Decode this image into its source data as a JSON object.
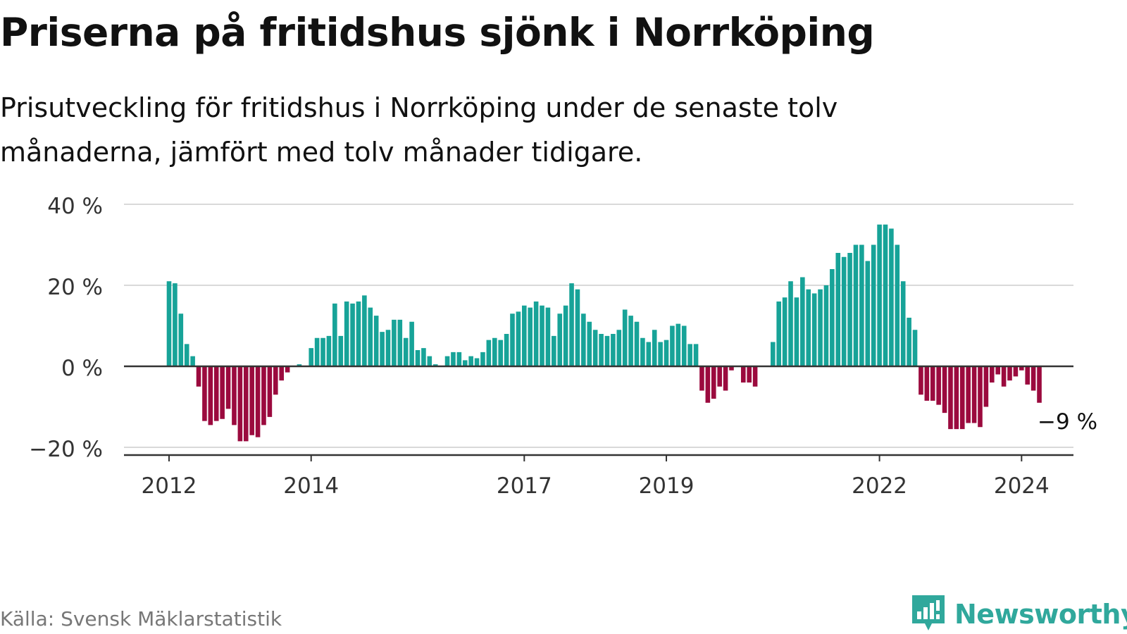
{
  "title": "Priserna på fritidshus sjönk i Norrköping",
  "subtitle": "Prisutveckling för fritidshus i Norrköping under de senaste tolv månaderna, jämfört med tolv månader tidigare.",
  "source": "Källa: Svensk Mäklarstatistik",
  "brand": {
    "name": "Newsworthy",
    "logo_icon": "newsworthy-chart-icon",
    "color": "#30a89c"
  },
  "colors": {
    "positive": "#17a398",
    "negative": "#9b0a3e",
    "grid": "#d9d9d9",
    "zero_line": "#333333",
    "text": "#111111",
    "muted": "#777777"
  },
  "chart_data": {
    "type": "bar",
    "title": "Priserna på fritidshus sjönk i Norrköping",
    "xlabel": "",
    "ylabel": "",
    "unit": "%",
    "ylim": [
      -22,
      40
    ],
    "yticks": [
      -20,
      0,
      20,
      40
    ],
    "ytick_labels": [
      "−20 %",
      "0 %",
      "20 %",
      "40 %"
    ],
    "x_start": "2012-01",
    "xticks": [
      "2012",
      "2014",
      "2017",
      "2019",
      "2022",
      "2024"
    ],
    "end_label": "−9 %",
    "values": [
      21,
      20.5,
      13,
      5.5,
      2.5,
      -5,
      -13.5,
      -14.5,
      -13.5,
      -13,
      -10.5,
      -14.5,
      -18.5,
      -18.5,
      -17,
      -17.5,
      -14.5,
      -12.5,
      -7,
      -3.5,
      -1.5,
      0,
      0.5,
      0,
      4.5,
      7,
      7,
      7.5,
      15.5,
      7.5,
      16,
      15.5,
      16,
      17.5,
      14.5,
      12.5,
      8.5,
      9,
      11.5,
      11.5,
      7,
      11,
      4,
      4.5,
      2.5,
      0.5,
      0,
      2.5,
      3.5,
      3.5,
      1.5,
      2.5,
      2,
      3.5,
      6.5,
      7,
      6.5,
      8,
      13,
      13.5,
      15,
      14.5,
      16,
      15,
      14.5,
      7.5,
      13,
      15,
      20.5,
      19,
      13,
      11,
      9,
      8,
      7.5,
      8,
      9,
      14,
      12.5,
      11,
      7,
      6,
      9,
      6,
      6.5,
      10,
      10.5,
      10,
      5.5,
      5.5,
      -6,
      -9,
      -8,
      -5,
      -6,
      -1,
      0,
      -4,
      -4,
      -5,
      0,
      0,
      6,
      16,
      17,
      21,
      17,
      22,
      19,
      18,
      19,
      20,
      24,
      28,
      27,
      28,
      30,
      30,
      26,
      30,
      35,
      35,
      34,
      30,
      21,
      12,
      9,
      -7,
      -8.5,
      -8.5,
      -9.5,
      -11.5,
      -15.5,
      -15.5,
      -15.5,
      -14,
      -14,
      -15,
      -10,
      -4,
      -2,
      -5,
      -3.5,
      -2.5,
      -1,
      -4.5,
      -6,
      -9
    ]
  }
}
